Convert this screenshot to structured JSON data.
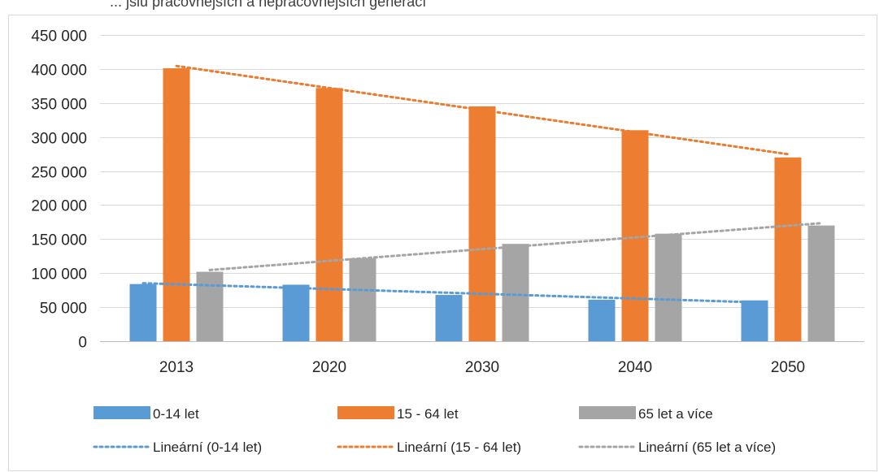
{
  "title_fragment": "... jsiu pracovnějších a nepracovnějších generací",
  "chart_data": {
    "type": "bar",
    "categories": [
      "2013",
      "2020",
      "2030",
      "2040",
      "2050"
    ],
    "series": [
      {
        "name": "0-14 let",
        "values": [
          84000,
          83000,
          68000,
          61000,
          60000
        ],
        "color": "#5b9bd5"
      },
      {
        "name": "15 - 64 let",
        "values": [
          401000,
          372000,
          345000,
          310000,
          270000
        ],
        "color": "#ed7d31"
      },
      {
        "name": "65 let a více",
        "values": [
          102000,
          122000,
          143000,
          158000,
          170000
        ],
        "color": "#a5a5a5"
      }
    ],
    "trendlines": [
      {
        "name": "Lineární (0-14 let)",
        "type": "linear",
        "series": "0-14 let",
        "color": "#5b9bd5"
      },
      {
        "name": "Lineární (15 - 64 let)",
        "type": "linear",
        "series": "15 - 64 let",
        "color": "#ed7d31"
      },
      {
        "name": "Lineární (65 let a více)",
        "type": "linear",
        "series": "65 let a více",
        "color": "#a5a5a5"
      }
    ],
    "y_ticks": [
      "0",
      "50 000",
      "100 000",
      "150 000",
      "200 000",
      "250 000",
      "300 000",
      "350 000",
      "400 000",
      "450 000"
    ],
    "ylim": [
      0,
      450000
    ],
    "xlabel": "",
    "ylabel": "",
    "grid": true,
    "legend_position": "bottom"
  }
}
